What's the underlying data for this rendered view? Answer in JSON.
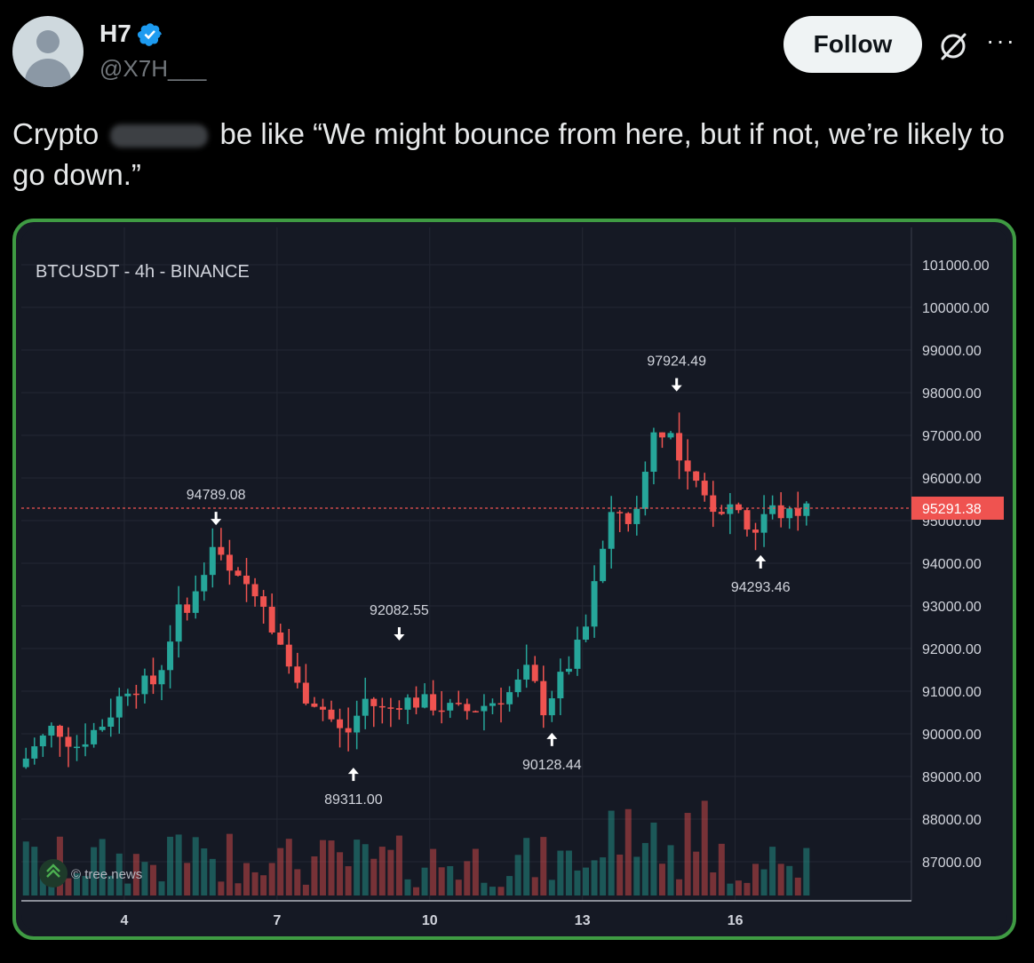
{
  "post": {
    "author_name": "H7",
    "author_handle": "@X7H___",
    "follow_label": "Follow",
    "more_label": "···",
    "text_prefix": "Crypto",
    "text_suffix": "be like “We might bounce from here, but if not, we’re likely to go down.”"
  },
  "chart_data": {
    "type": "candlestick",
    "title": "BTCUSDT - 4h - BINANCE",
    "x_ticks": [
      "4",
      "7",
      "10",
      "13",
      "16"
    ],
    "y_ticks": [
      "101000.00",
      "100000.00",
      "99000.00",
      "98000.00",
      "97000.00",
      "96000.00",
      "95000.00",
      "94000.00",
      "93000.00",
      "92000.00",
      "91000.00",
      "90000.00",
      "89000.00",
      "88000.00",
      "87000.00"
    ],
    "ylim": [
      86000,
      101500
    ],
    "current_price": "95291.38",
    "annotations": [
      {
        "label": "94789.08",
        "dir": "down",
        "day": 5.8,
        "value": 94789.08
      },
      {
        "label": "89311.00",
        "dir": "up",
        "day": 8.5,
        "value": 89311.0
      },
      {
        "label": "92082.55",
        "dir": "down",
        "day": 9.4,
        "value": 92082.55
      },
      {
        "label": "90128.44",
        "dir": "up",
        "day": 12.4,
        "value": 90128.44
      },
      {
        "label": "97924.49",
        "dir": "down",
        "day": 14.85,
        "value": 97924.49
      },
      {
        "label": "94293.46",
        "dir": "up",
        "day": 16.5,
        "value": 94293.46
      }
    ],
    "watermark": "© tree.news",
    "colors": {
      "up": "#26a69a",
      "down": "#ef5350",
      "background": "#151924",
      "grid": "#232733",
      "price_line": "#ef5350"
    }
  }
}
